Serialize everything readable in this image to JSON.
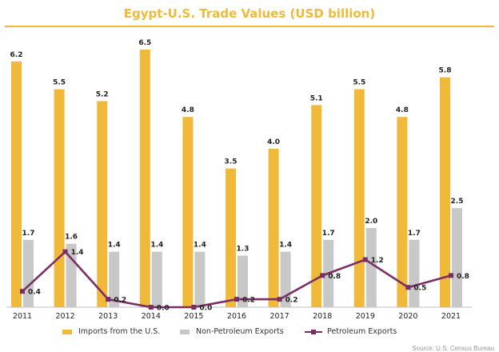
{
  "chart_data": {
    "type": "bar",
    "title": "Egypt-U.S. Trade Values (USD billion)",
    "categories": [
      "2011",
      "2012",
      "2013",
      "2014",
      "2015",
      "2016",
      "2017",
      "2018",
      "2019",
      "2020",
      "2021"
    ],
    "series": [
      {
        "name": "Imports from the U.S.",
        "type": "bar",
        "color": "#F0B93A",
        "values": [
          6.2,
          5.5,
          5.2,
          6.5,
          4.8,
          3.5,
          4.0,
          5.1,
          5.5,
          4.8,
          5.8
        ],
        "labels": [
          "6.2",
          "5.5",
          "5.2",
          "6.5",
          "4.8",
          "3.5",
          "4.0",
          "5.1",
          "5.5",
          "4.8",
          "5.8"
        ]
      },
      {
        "name": "Non-Petroleum Exports",
        "type": "bar",
        "color": "#C8C8C8",
        "values": [
          1.7,
          1.6,
          1.4,
          1.4,
          1.4,
          1.3,
          1.4,
          1.7,
          2.0,
          1.7,
          2.5
        ],
        "labels": [
          "1.7",
          "1.6",
          "1.4",
          "1.4",
          "1.4",
          "1.3",
          "1.4",
          "1.7",
          "2.0",
          "1.7",
          "2.5"
        ]
      },
      {
        "name": "Petroleum Exports",
        "type": "line",
        "color": "#7A2E63",
        "values": [
          0.4,
          1.4,
          0.2,
          0.0,
          0.0,
          0.2,
          0.2,
          0.8,
          1.2,
          0.5,
          0.8
        ],
        "labels": [
          "0.4",
          "1.4",
          "0.2",
          "0.0",
          "0.0",
          "0.2",
          "0.2",
          "0.8",
          "1.2",
          "0.5",
          "0.8"
        ]
      }
    ],
    "ylim": [
      0,
      6.5
    ],
    "grid": false,
    "legend_position": "bottom"
  },
  "source_note": "Source: U.S. Census Bureau"
}
